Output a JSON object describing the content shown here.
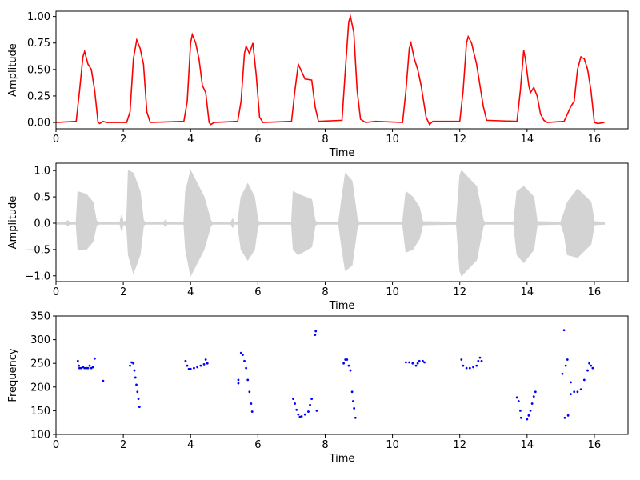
{
  "chart_data": [
    {
      "type": "line",
      "color": "#ff0000",
      "xlabel": "Time",
      "ylabel": "Amplitude",
      "xlim": [
        0,
        17
      ],
      "xticks": [
        0,
        2,
        4,
        6,
        8,
        10,
        12,
        14,
        16
      ],
      "ylim": [
        -0.06,
        1.05
      ],
      "yticks": [
        {
          "value": 0,
          "label": "0.00"
        },
        {
          "value": 0.25,
          "label": "0.25"
        },
        {
          "value": 0.5,
          "label": "0.50"
        },
        {
          "value": 0.75,
          "label": "0.75"
        },
        {
          "value": 1,
          "label": "1.00"
        }
      ],
      "x": [
        0,
        0.6,
        0.7,
        0.8,
        0.85,
        0.95,
        1.05,
        1.15,
        1.25,
        1.3,
        1.4,
        1.5,
        2.1,
        2.2,
        2.3,
        2.4,
        2.5,
        2.6,
        2.7,
        2.8,
        3.8,
        3.9,
        4.0,
        4.05,
        4.15,
        4.25,
        4.35,
        4.45,
        4.55,
        4.6,
        4.7,
        5.4,
        5.5,
        5.6,
        5.65,
        5.75,
        5.85,
        5.95,
        6.05,
        6.15,
        7.0,
        7.1,
        7.2,
        7.3,
        7.4,
        7.6,
        7.7,
        7.8,
        8.5,
        8.6,
        8.7,
        8.75,
        8.85,
        8.95,
        9.05,
        9.2,
        9.5,
        10.3,
        10.4,
        10.5,
        10.55,
        10.65,
        10.75,
        10.85,
        11.0,
        11.1,
        11.2,
        12.0,
        12.1,
        12.2,
        12.25,
        12.35,
        12.5,
        12.6,
        12.7,
        12.8,
        13.7,
        13.8,
        13.9,
        13.95,
        14.05,
        14.1,
        14.2,
        14.3,
        14.4,
        14.5,
        14.6,
        15.1,
        15.3,
        15.4,
        15.5,
        15.6,
        15.7,
        15.8,
        15.9,
        16.0,
        16.1,
        16.3
      ],
      "values": [
        0,
        0.01,
        0.3,
        0.62,
        0.67,
        0.55,
        0.5,
        0.3,
        0,
        -0.01,
        0.01,
        0,
        0,
        0.1,
        0.6,
        0.78,
        0.7,
        0.55,
        0.1,
        0,
        0.01,
        0.2,
        0.75,
        0.83,
        0.75,
        0.6,
        0.35,
        0.28,
        0,
        -0.02,
        0,
        0.01,
        0.2,
        0.65,
        0.72,
        0.65,
        0.75,
        0.45,
        0.05,
        0,
        0.01,
        0.3,
        0.55,
        0.48,
        0.41,
        0.4,
        0.15,
        0.01,
        0.02,
        0.5,
        0.95,
        1.0,
        0.85,
        0.3,
        0.03,
        0,
        0.01,
        0,
        0.3,
        0.7,
        0.75,
        0.6,
        0.5,
        0.35,
        0.05,
        -0.02,
        0.01,
        0.01,
        0.3,
        0.75,
        0.81,
        0.75,
        0.55,
        0.35,
        0.15,
        0.02,
        0.01,
        0.3,
        0.68,
        0.6,
        0.35,
        0.28,
        0.33,
        0.25,
        0.08,
        0.02,
        0,
        0.01,
        0.15,
        0.2,
        0.5,
        0.62,
        0.6,
        0.5,
        0.3,
        0,
        -0.01,
        0
      ]
    },
    {
      "type": "envelope",
      "color": "#d3d3d3",
      "xlabel": "Time",
      "ylabel": "Amplitude",
      "xlim": [
        0,
        17
      ],
      "xticks": [
        0,
        2,
        4,
        6,
        8,
        10,
        12,
        14,
        16
      ],
      "ylim": [
        -1.11,
        1.14
      ],
      "yticks": [
        {
          "value": -1,
          "label": "−1.0"
        },
        {
          "value": -0.5,
          "label": "−0.5"
        },
        {
          "value": 0,
          "label": "0.0"
        },
        0.5,
        {
          "value": 1,
          "label": "1.0"
        }
      ],
      "x": [
        0,
        0.3,
        0.35,
        0.4,
        0.6,
        0.65,
        0.9,
        1.1,
        1.2,
        1.25,
        1.9,
        1.95,
        2.0,
        2.1,
        2.15,
        2.3,
        2.5,
        2.6,
        2.65,
        3.2,
        3.25,
        3.3,
        3.8,
        3.85,
        4.0,
        4.4,
        4.6,
        4.65,
        5.2,
        5.25,
        5.3,
        5.4,
        5.5,
        5.7,
        5.9,
        6.0,
        6.05,
        7.0,
        7.05,
        7.2,
        7.6,
        7.7,
        7.75,
        8.4,
        8.5,
        8.6,
        8.8,
        8.95,
        9.0,
        10.3,
        10.4,
        10.6,
        10.8,
        10.9,
        11.9,
        12.0,
        12.05,
        12.5,
        12.7,
        12.75,
        13.6,
        13.7,
        13.9,
        14.2,
        14.3,
        15.0,
        15.1,
        15.2,
        15.5,
        15.9,
        16.0,
        16.3
      ],
      "upper": [
        0.02,
        0.02,
        0.05,
        0.02,
        0.02,
        0.6,
        0.55,
        0.4,
        0.05,
        0.02,
        0.02,
        0.15,
        0.02,
        0.05,
        1.0,
        0.95,
        0.6,
        0.05,
        0.02,
        0.02,
        0.06,
        0.02,
        0.02,
        0.6,
        1.0,
        0.5,
        0.05,
        0.02,
        0.02,
        0.08,
        0.02,
        0.02,
        0.5,
        0.75,
        0.5,
        0.05,
        0.02,
        0.02,
        0.6,
        0.55,
        0.45,
        0.05,
        0.02,
        0.02,
        0.5,
        0.95,
        0.8,
        0.1,
        0.02,
        0.02,
        0.6,
        0.5,
        0.3,
        0.03,
        0.02,
        0.9,
        1.0,
        0.7,
        0.05,
        0.02,
        0.02,
        0.6,
        0.7,
        0.5,
        0.03,
        0.02,
        0.2,
        0.4,
        0.65,
        0.4,
        0.03,
        0.02
      ],
      "lower": [
        -0.02,
        -0.02,
        -0.05,
        -0.02,
        -0.02,
        -0.5,
        -0.5,
        -0.35,
        -0.05,
        -0.02,
        -0.02,
        -0.15,
        -0.02,
        -0.05,
        -0.6,
        -0.95,
        -0.6,
        -0.05,
        -0.02,
        -0.02,
        -0.06,
        -0.02,
        -0.02,
        -0.5,
        -1.0,
        -0.5,
        -0.05,
        -0.02,
        -0.02,
        -0.08,
        -0.02,
        -0.02,
        -0.5,
        -0.7,
        -0.5,
        -0.05,
        -0.02,
        -0.02,
        -0.5,
        -0.6,
        -0.45,
        -0.05,
        -0.02,
        -0.02,
        -0.5,
        -0.9,
        -0.8,
        -0.1,
        -0.02,
        -0.02,
        -0.55,
        -0.5,
        -0.3,
        -0.03,
        -0.02,
        -0.9,
        -1.0,
        -0.7,
        -0.05,
        -0.02,
        -0.02,
        -0.6,
        -0.75,
        -0.5,
        -0.03,
        -0.02,
        -0.2,
        -0.6,
        -0.65,
        -0.4,
        -0.03,
        -0.02
      ]
    },
    {
      "type": "scatter",
      "color": "#0000ff",
      "xlabel": "Time",
      "ylabel": "Frequency",
      "xlim": [
        0,
        17
      ],
      "xticks": [
        0,
        2,
        4,
        6,
        8,
        10,
        12,
        14,
        16
      ],
      "ylim": [
        100,
        350
      ],
      "yticks": [
        100,
        150,
        200,
        250,
        300,
        350
      ],
      "x": [
        0.65,
        0.68,
        0.7,
        0.75,
        0.8,
        0.85,
        0.9,
        0.95,
        1.0,
        1.05,
        1.1,
        1.15,
        1.4,
        2.2,
        2.25,
        2.3,
        2.33,
        2.36,
        2.39,
        2.42,
        2.45,
        2.48,
        3.85,
        3.9,
        3.95,
        4.0,
        4.1,
        4.2,
        4.3,
        4.4,
        4.45,
        4.5,
        5.42,
        5.42,
        5.5,
        5.55,
        5.6,
        5.65,
        5.7,
        5.75,
        5.8,
        5.83,
        7.05,
        7.1,
        7.15,
        7.2,
        7.25,
        7.3,
        7.4,
        7.5,
        7.55,
        7.6,
        7.7,
        7.72,
        7.75,
        8.55,
        8.6,
        8.65,
        8.7,
        8.75,
        8.8,
        8.83,
        8.86,
        8.9,
        10.4,
        10.5,
        10.6,
        10.7,
        10.75,
        10.8,
        10.9,
        10.95,
        12.05,
        12.1,
        12.2,
        12.3,
        12.4,
        12.5,
        12.55,
        12.6,
        12.65,
        13.7,
        13.75,
        13.8,
        13.82,
        14.0,
        14.05,
        14.1,
        14.15,
        14.2,
        14.25,
        15.05,
        15.1,
        15.12,
        15.15,
        15.2,
        15.22,
        15.3,
        15.3,
        15.4,
        15.5,
        15.6,
        15.7,
        15.8,
        15.85,
        15.9,
        15.95
      ],
      "values": [
        255,
        245,
        240,
        240,
        242,
        240,
        240,
        240,
        245,
        240,
        242,
        260,
        213,
        245,
        252,
        250,
        235,
        220,
        205,
        190,
        175,
        158,
        255,
        245,
        238,
        238,
        240,
        242,
        245,
        248,
        258,
        250,
        215,
        208,
        272,
        268,
        255,
        240,
        215,
        190,
        165,
        148,
        175,
        165,
        152,
        142,
        137,
        138,
        142,
        148,
        162,
        175,
        310,
        318,
        150,
        250,
        258,
        258,
        245,
        235,
        190,
        170,
        155,
        135,
        252,
        252,
        250,
        245,
        250,
        255,
        255,
        252,
        258,
        245,
        240,
        240,
        242,
        245,
        255,
        262,
        255,
        178,
        170,
        150,
        135,
        132,
        140,
        150,
        165,
        180,
        190,
        228,
        320,
        135,
        245,
        258,
        140,
        210,
        185,
        190,
        190,
        195,
        215,
        235,
        250,
        245,
        240
      ]
    }
  ]
}
